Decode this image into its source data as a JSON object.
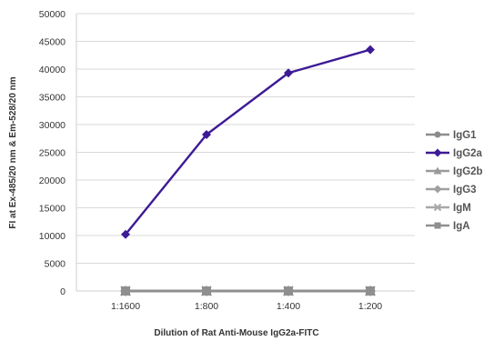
{
  "chart_data": {
    "type": "line",
    "categories": [
      "1:1600",
      "1:800",
      "1:400",
      "1:200"
    ],
    "ylim": [
      0,
      50000
    ],
    "yticks": [
      0,
      5000,
      10000,
      15000,
      20000,
      25000,
      30000,
      35000,
      40000,
      45000,
      50000
    ],
    "xlabel": "Dilution of Rat Anti-Mouse IgG2a-FITC",
    "ylabel": "FI at Ex-485/20 nm & Em-528/20 nm",
    "grid": true,
    "legend": "right",
    "series": [
      {
        "name": "IgG1",
        "values": [
          0,
          0,
          0,
          0
        ],
        "color": "#8c8c8c",
        "marker": "circle"
      },
      {
        "name": "IgG2a",
        "values": [
          10200,
          28200,
          39300,
          43500
        ],
        "color": "#3d1a96",
        "marker": "diamond"
      },
      {
        "name": "IgG2b",
        "values": [
          0,
          0,
          0,
          0
        ],
        "color": "#9a9a9a",
        "marker": "triangle"
      },
      {
        "name": "IgG3",
        "values": [
          0,
          0,
          0,
          0
        ],
        "color": "#a0a0a0",
        "marker": "diamond"
      },
      {
        "name": "IgM",
        "values": [
          0,
          0,
          0,
          0
        ],
        "color": "#a8a8a8",
        "marker": "x"
      },
      {
        "name": "IgA",
        "values": [
          0,
          0,
          0,
          0
        ],
        "color": "#8f8f8f",
        "marker": "square"
      }
    ]
  }
}
